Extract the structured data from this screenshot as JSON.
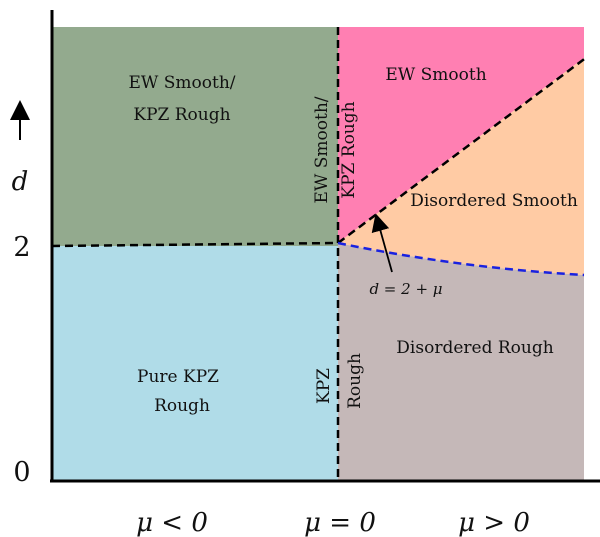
{
  "regions": {
    "ew_kpz_left": {
      "line1": "EW Smooth/",
      "line2": "KPZ Rough",
      "color": "#93aa8e"
    },
    "ew_kpz_center": {
      "line1": "EW Smooth/",
      "line2": "KPZ Rough"
    },
    "ew_smooth": {
      "label": "EW Smooth",
      "color": "#ff7fb2"
    },
    "disordered_smooth": {
      "label": "Disordered Smooth",
      "color": "#ffcba4"
    },
    "pure_kpz": {
      "line1": "Pure KPZ",
      "line2": "Rough",
      "color": "#b0dce8"
    },
    "kpz_rough_center": {
      "line1": "KPZ",
      "line2": "Rough"
    },
    "disordered_rough": {
      "label": "Disordered Rough",
      "color": "#c5b8b8"
    }
  },
  "annotation": {
    "label": "d = 2 + μ"
  },
  "axes": {
    "y_label": "d",
    "y_tick_2": "2",
    "y_tick_0": "0",
    "x_labels": [
      "μ < 0",
      "μ = 0",
      "μ > 0"
    ]
  },
  "colors": {
    "boundary_black": "#000000",
    "boundary_blue": "#1a22e0"
  }
}
